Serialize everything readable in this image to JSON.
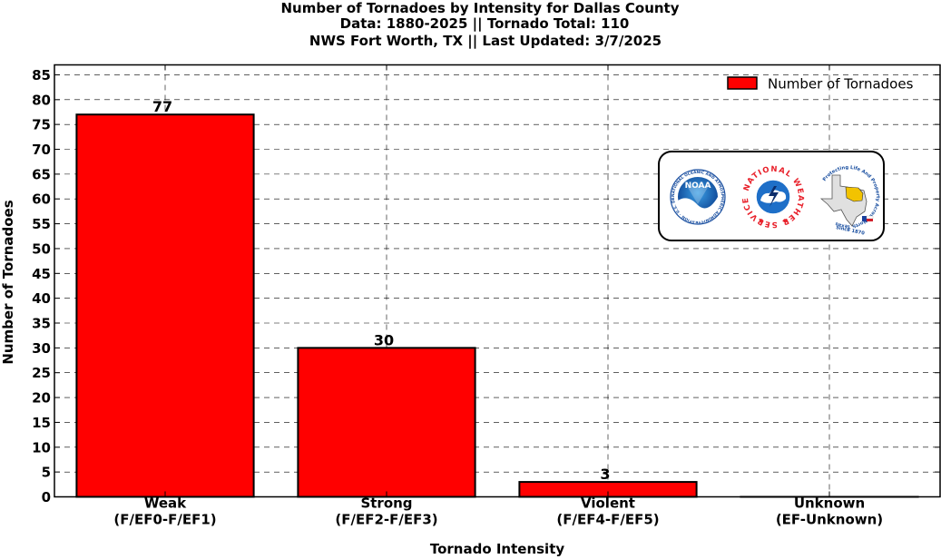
{
  "chart_data": {
    "type": "bar",
    "title_lines": [
      "Number of Tornadoes by Intensity for Dallas County",
      "Data: 1880-2025 || Tornado Total: 110",
      "NWS Fort Worth, TX || Last Updated: 3/7/2025"
    ],
    "categories": [
      [
        "Weak",
        "(F/EF0-F/EF1)"
      ],
      [
        "Strong",
        "(F/EF2-F/EF3)"
      ],
      [
        "Violent",
        "(F/EF4-F/EF5)"
      ],
      [
        "Unknown",
        "(EF-Unknown)"
      ]
    ],
    "series": [
      {
        "name": "Number of Tornadoes",
        "values": [
          77,
          30,
          3,
          0
        ],
        "color": "#ff0000"
      }
    ],
    "data_labels": [
      "77",
      "30",
      "3",
      ""
    ],
    "xlabel": "Tornado Intensity",
    "ylabel": "Number of Tornadoes",
    "ylim": [
      0,
      87
    ],
    "yticks": [
      0,
      5,
      10,
      15,
      20,
      25,
      30,
      35,
      40,
      45,
      50,
      55,
      60,
      65,
      70,
      75,
      80,
      85
    ],
    "grid": true,
    "legend_position": "top-right",
    "logos": [
      "noaa-logo",
      "nws-logo",
      "nws-fort-worth-logo"
    ],
    "logo_text": {
      "noaa": "NOAA",
      "nws_ring": "NATIONAL WEATHER SERVICE",
      "texas_ring": "Protecting Life And Property Across North Texas",
      "texas_since": "Since 1870"
    }
  }
}
